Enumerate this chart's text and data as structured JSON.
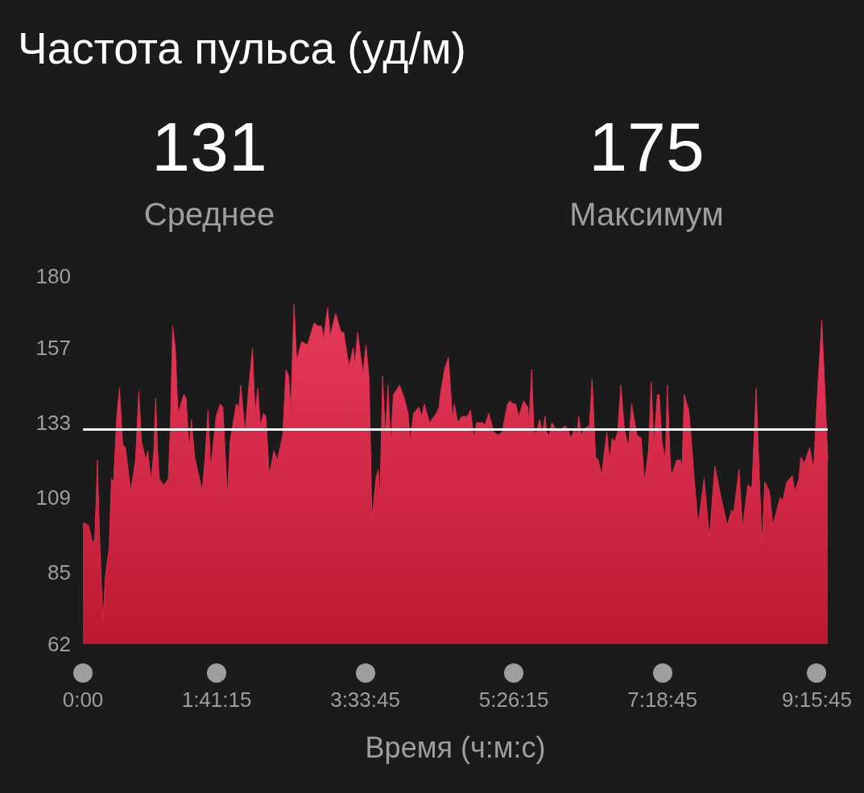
{
  "chart_data": {
    "type": "area",
    "title": "Частота пульса (уд/м)",
    "xlabel": "Время (ч:м:с)",
    "annotations": [
      "131",
      "Среднее",
      "175",
      "Максимум"
    ],
    "x": [
      0,
      0.071,
      0.115,
      0.149,
      0.183,
      0.207,
      0.251,
      0.285,
      0.332,
      0.359,
      0.386,
      0.427,
      0.461,
      0.502,
      0.536,
      0.603,
      0.664,
      0.705,
      0.739,
      0.793,
      0.817,
      0.861,
      0.895,
      0.918,
      0.942,
      0.963,
      1.02,
      1.078,
      1.105,
      1.132,
      1.166,
      1.2,
      1.274,
      1.301,
      1.342,
      1.369,
      1.41,
      1.505,
      1.539,
      1.579,
      1.613,
      1.681,
      1.732,
      1.766,
      1.823,
      1.857,
      1.935,
      1.969,
      1.993,
      2.027,
      2.047,
      2.088,
      2.139,
      2.173,
      2.206,
      2.24,
      2.281,
      2.308,
      2.352,
      2.41,
      2.454,
      2.522,
      2.562,
      2.596,
      2.623,
      2.664,
      2.698,
      2.759,
      2.833,
      2.918,
      2.969,
      3.01,
      3.037,
      3.088,
      3.122,
      3.189,
      3.257,
      3.291,
      3.359,
      3.41,
      3.433,
      3.467,
      3.501,
      3.535,
      3.572,
      3.613,
      3.63,
      3.647,
      3.698,
      3.725,
      3.749,
      3.759,
      3.782,
      3.816,
      3.85,
      3.884,
      3.918,
      3.996,
      4.054,
      4.104,
      4.131,
      4.172,
      4.24,
      4.274,
      4.308,
      4.375,
      4.46,
      4.494,
      4.511,
      4.562,
      4.613,
      4.647,
      4.664,
      4.687,
      4.731,
      4.782,
      4.85,
      4.891,
      4.911,
      4.935,
      4.969,
      5.047,
      5.07,
      5.121,
      5.155,
      5.182,
      5.24,
      5.291,
      5.358,
      5.392,
      5.426,
      5.46,
      5.501,
      5.562,
      5.613,
      5.63,
      5.663,
      5.691,
      5.714,
      5.765,
      5.799,
      5.833,
      5.85,
      5.884,
      5.918,
      5.968,
      6.036,
      6.087,
      6.121,
      6.155,
      6.206,
      6.233,
      6.257,
      6.29,
      6.324,
      6.392,
      6.426,
      6.47,
      6.504,
      6.545,
      6.612,
      6.646,
      6.68,
      6.714,
      6.748,
      6.789,
      6.833,
      6.884,
      6.924,
      6.992,
      7.046,
      7.087,
      7.138,
      7.172,
      7.206,
      7.25,
      7.273,
      7.307,
      7.351,
      7.375,
      7.409,
      7.426,
      7.494,
      7.544,
      7.561,
      7.588,
      7.646,
      7.68,
      7.714,
      7.765,
      7.839,
      7.907,
      7.975,
      8.036,
      8.131,
      8.188,
      8.212,
      8.28,
      8.324,
      8.392,
      8.443,
      8.497,
      8.538,
      8.571,
      8.605,
      8.663,
      8.707,
      8.798,
      8.832,
      8.883,
      8.951,
      8.985,
      9.036,
      9.059,
      9.103,
      9.171,
      9.222,
      9.256,
      9.324,
      9.365,
      9.4
    ],
    "values": [
      101,
      100,
      95,
      95,
      121,
      98,
      69,
      84,
      93,
      115,
      114,
      135,
      144,
      126,
      125,
      111,
      121,
      143,
      127,
      121,
      124,
      114,
      124,
      141,
      124,
      115,
      113,
      115,
      133,
      164,
      157,
      136,
      142,
      141,
      124,
      134,
      122,
      111,
      121,
      137,
      118,
      135,
      139,
      138,
      109,
      127,
      139,
      138,
      145,
      135,
      130,
      143,
      157,
      136,
      144,
      132,
      136,
      135,
      116,
      124,
      121,
      129,
      150,
      148,
      137,
      171,
      153,
      159,
      158,
      165,
      164,
      164,
      160,
      170,
      161,
      168,
      162,
      162,
      151,
      157,
      152,
      162,
      155,
      149,
      158,
      147,
      124,
      102,
      115,
      118,
      109,
      121,
      148,
      129,
      145,
      126,
      142,
      145,
      141,
      136,
      127,
      136,
      138,
      135,
      139,
      133,
      136,
      138,
      142,
      150,
      154,
      141,
      134,
      139,
      133,
      135,
      135,
      137,
      133,
      128,
      133,
      133,
      132,
      136,
      133,
      130,
      129,
      130,
      139,
      140,
      139,
      139,
      135,
      140,
      138,
      133,
      150,
      131,
      129,
      134,
      130,
      135,
      130,
      129,
      133,
      131,
      131,
      132,
      131,
      128,
      131,
      129,
      135,
      129,
      131,
      132,
      147,
      122,
      121,
      116,
      130,
      121,
      128,
      127,
      130,
      145,
      131,
      125,
      139,
      129,
      128,
      114,
      124,
      146,
      126,
      142,
      142,
      127,
      121,
      145,
      122,
      116,
      121,
      121,
      118,
      142,
      137,
      127,
      115,
      100,
      115,
      96,
      119,
      111,
      100,
      105,
      104,
      118,
      99,
      113,
      112,
      144,
      114,
      94,
      114,
      111,
      100,
      109,
      108,
      114,
      116,
      111,
      115,
      122,
      120,
      125,
      118,
      136,
      166,
      143,
      121
    ],
    "color": "#dc2c4a",
    "xlim": [
      0,
      9.4
    ],
    "ylim": [
      62,
      180
    ],
    "xticks": [
      {
        "value": 0,
        "label": "0:00"
      },
      {
        "value": 1.6875,
        "label": "1:41:15"
      },
      {
        "value": 3.5625,
        "label": "3:33:45"
      },
      {
        "value": 5.4375,
        "label": "5:26:15"
      },
      {
        "value": 7.3125,
        "label": "7:18:45"
      },
      {
        "value": 9.2625,
        "label": "9:15:45"
      }
    ],
    "yticks": [
      62,
      85,
      109,
      133,
      157,
      180
    ],
    "ref_lines": [
      {
        "axis": "y",
        "value": 131,
        "color": "#ffffff"
      }
    ]
  }
}
